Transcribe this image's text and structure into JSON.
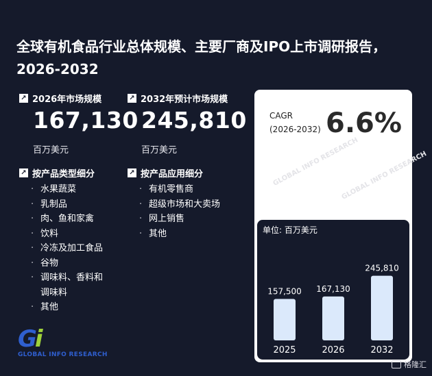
{
  "title": "全球有机食品行业总体规模、主要厂商及IPO上市调研报告，2026-2032",
  "stat_2026": {
    "label": "2026年市场规模",
    "value": "167,130",
    "unit": "百万美元"
  },
  "stat_2032": {
    "label": "2032年预计市场规模",
    "value": "245,810",
    "unit": "百万美元"
  },
  "segments_type": {
    "heading": "按产品类型细分",
    "items": [
      "水果蔬菜",
      "乳制品",
      "肉、鱼和家禽",
      "饮料",
      "冷冻及加工食品",
      "谷物",
      "调味料、香料和",
      "调味料",
      "其他"
    ]
  },
  "segments_application": {
    "heading": "按产品应用细分",
    "items": [
      "有机零售商",
      "超级市场和大卖场",
      "网上销售",
      "其他"
    ]
  },
  "cagr": {
    "label": "CAGR",
    "period": "(2026-2032)",
    "value": "6.6%"
  },
  "logo": {
    "mark_g": "G",
    "mark_i": "i",
    "text": "GLOBAL INFO RESEARCH"
  },
  "watermark": {
    "text": "GLOBAL INFO RESEARCH"
  },
  "footer": {
    "brand": "格隆汇"
  },
  "colors": {
    "background": "#151a2b",
    "bar": "#dbe9fb",
    "card": "#ffffff"
  },
  "chart_data": {
    "type": "bar",
    "unit_label": "单位: 百万美元",
    "categories": [
      "2025",
      "2026",
      "2032"
    ],
    "values": [
      157500,
      167130,
      245810
    ],
    "value_labels": [
      "157,500",
      "167,130",
      "245,810"
    ],
    "ylim": [
      0,
      250000
    ],
    "grid": false,
    "legend": "none"
  }
}
